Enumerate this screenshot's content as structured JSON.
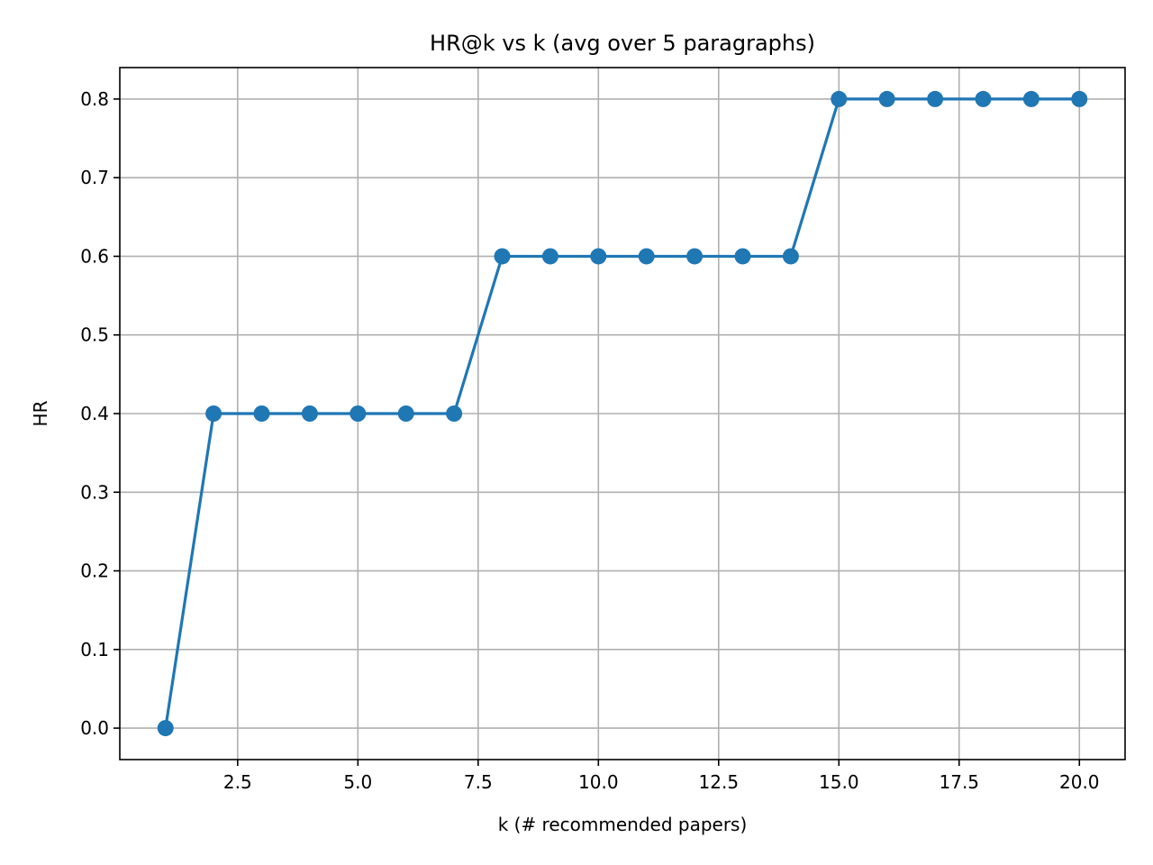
{
  "chart_data": {
    "type": "line",
    "title": "HR@k vs k  (avg over 5 paragraphs)",
    "xlabel": "k (# recommended papers)",
    "ylabel": "HR",
    "xlim": [
      0.05,
      20.95
    ],
    "ylim": [
      -0.04,
      0.84
    ],
    "grid": true,
    "x_ticks": [
      2.5,
      5.0,
      7.5,
      10.0,
      12.5,
      15.0,
      17.5,
      20.0
    ],
    "x_tick_labels": [
      "2.5",
      "5.0",
      "7.5",
      "10.0",
      "12.5",
      "15.0",
      "17.5",
      "20.0"
    ],
    "y_ticks": [
      0.0,
      0.1,
      0.2,
      0.3,
      0.4,
      0.5,
      0.6,
      0.7,
      0.8
    ],
    "y_tick_labels": [
      "0.0",
      "0.1",
      "0.2",
      "0.3",
      "0.4",
      "0.5",
      "0.6",
      "0.7",
      "0.8"
    ],
    "series": [
      {
        "color": "#1f77b4",
        "marker": "circle",
        "x": [
          1,
          2,
          3,
          4,
          5,
          6,
          7,
          8,
          9,
          10,
          11,
          12,
          13,
          14,
          15,
          16,
          17,
          18,
          19,
          20
        ],
        "y": [
          0.0,
          0.4,
          0.4,
          0.4,
          0.4,
          0.4,
          0.4,
          0.6,
          0.6,
          0.6,
          0.6,
          0.6,
          0.6,
          0.6,
          0.8,
          0.8,
          0.8,
          0.8,
          0.8,
          0.8
        ]
      }
    ]
  }
}
